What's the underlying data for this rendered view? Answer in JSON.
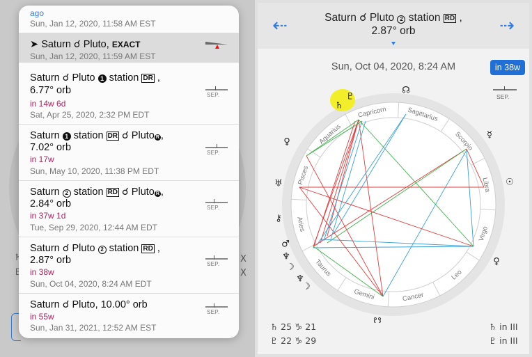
{
  "left": {
    "background_glyphs": [
      "♄",
      "♇"
    ],
    "background_x": [
      "X",
      "X"
    ],
    "events": [
      {
        "ago": "ago",
        "date": "Sun, Jan 12, 2020, 11:58 AM EST"
      },
      {
        "arrow": "➤",
        "text": "Saturn ☌ Pluto,",
        "exact": "EXACT",
        "date": "Sun, Jan 12, 2020, 11:59 AM EST",
        "selected": true
      },
      {
        "line1": "Saturn ☌ Pluto",
        "circle": "1",
        "station": "station",
        "box": "DR",
        "line2": "6.77° orb",
        "pink": "in 14w 6d",
        "date": "Sat, Apr 25, 2020, 2:32 PM EDT",
        "sep": "SEP."
      },
      {
        "line1": "Saturn",
        "circle": "1",
        "station": "station",
        "box": "DR",
        "tail": "☌ Pluto",
        "retro": "R",
        "line2": "7.02° orb",
        "pink": "in 17w",
        "date": "Sun, May 10, 2020, 11:38 PM EDT",
        "sep": "SEP."
      },
      {
        "line1": "Saturn",
        "circle": "2",
        "station": "station",
        "box": "RD",
        "tail": "☌ Pluto",
        "retro": "R",
        "line2": "2.84° orb",
        "pink": "in 37w 1d",
        "date": "Tue, Sep 29, 2020, 12:44 AM EDT",
        "sep": "SEP."
      },
      {
        "line1": "Saturn ☌ Pluto",
        "circle": "2",
        "station": "station",
        "box": "RD",
        "line2": "2.87° orb",
        "pink": "in 38w",
        "date": "Sun, Oct 04, 2020, 8:24 AM EDT",
        "sep": "SEP."
      },
      {
        "line1": "Saturn ☌ Pluto, 10.00° orb",
        "pink": "in 55w",
        "date": "Sun, Jan 31, 2021, 12:52 AM EST",
        "sep": "SEP."
      }
    ]
  },
  "right": {
    "back_icon": "arrow-left-icon",
    "forward_icon": "arrow-right-icon",
    "back_glyph": "⇠",
    "forward_glyph": "⇢",
    "title_pre": "Saturn ☌ Pluto",
    "title_circle": "2",
    "title_station": "station",
    "title_box": "RD",
    "title_line2": "2.87° orb",
    "date": "Sun, Oct 04, 2020, 8:24 AM",
    "in_button": "in 38w",
    "sep": "SEP.",
    "signs": [
      "Capricorn",
      "Sagittarius",
      "Scorpio",
      "Libra",
      "Virgo",
      "Leo",
      "Cancer",
      "Gemini",
      "Taurus",
      "Aries",
      "Pisces",
      "Aquarius"
    ],
    "outer_glyphs": [
      "♄",
      "♇",
      "☊",
      "☿",
      "☉",
      "♀",
      "☋",
      "♅",
      "☽",
      "♂",
      "⚷",
      "♆",
      "♀"
    ],
    "footer": {
      "left1": "♄ 25 ♑ 21",
      "left2": "♇ 22 ♑ 29",
      "right1": "♄  in III",
      "right2": "♇  in III"
    },
    "colors": {
      "accent": "#2f7de1",
      "hard": "#e23b3b",
      "soft": "#3aa0d6",
      "green": "#3db24a",
      "highlight": "#f2ef2a"
    }
  }
}
